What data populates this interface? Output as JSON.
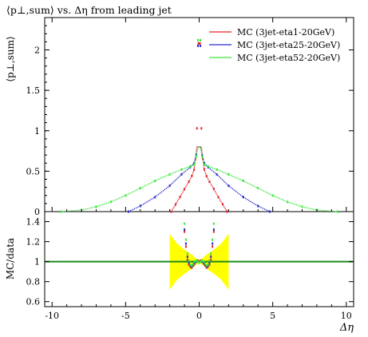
{
  "chart_data": {
    "type": "line",
    "title": "⟨p⊥,sum⟩ vs. Δη from leading jet",
    "xlabel": "Δη",
    "top_panel": {
      "ylabel": "⟨p⊥,sum⟩",
      "xlim": [
        -10.5,
        10.5
      ],
      "ylim": [
        0,
        2.4
      ],
      "yticks": [
        "0",
        "0.5",
        "1",
        "1.5",
        "2"
      ],
      "xticks": [
        "-10",
        "-5",
        "0",
        "5",
        "10"
      ],
      "legend_position": "top-right",
      "series": [
        {
          "name": "MC (3jet-eta1-20GeV)",
          "color": "#e8202a",
          "x": [
            -1.9,
            -1.6,
            -1.3,
            -1.0,
            -0.7,
            -0.5,
            -0.35,
            -0.25,
            -0.15,
            -0.05,
            0.05,
            0.15,
            0.25,
            0.35,
            0.5,
            0.7,
            1.0,
            1.3,
            1.6,
            1.9
          ],
          "y": [
            0.0,
            0.09,
            0.18,
            0.28,
            0.37,
            0.44,
            0.52,
            0.65,
            1.03,
            2.08,
            2.08,
            1.03,
            0.65,
            0.52,
            0.44,
            0.37,
            0.28,
            0.18,
            0.09,
            0.0
          ]
        },
        {
          "name": "MC (3jet-eta25-20GeV)",
          "color": "#2a2ad0",
          "x": [
            -4.8,
            -4.0,
            -3.0,
            -2.0,
            -1.2,
            -0.6,
            -0.35,
            -0.2,
            -0.08,
            0.08,
            0.2,
            0.35,
            0.6,
            1.2,
            2.0,
            3.0,
            4.0,
            4.8
          ],
          "y": [
            0.0,
            0.07,
            0.18,
            0.32,
            0.46,
            0.55,
            0.6,
            0.7,
            2.05,
            2.05,
            0.7,
            0.6,
            0.55,
            0.46,
            0.32,
            0.18,
            0.07,
            0.0
          ],
          "note_points": []
        },
        {
          "name": "MC (3jet-eta52-20GeV)",
          "color": "#3ae83a",
          "x": [
            -9.4,
            -8.0,
            -7.0,
            -6.0,
            -5.0,
            -4.0,
            -3.0,
            -2.0,
            -1.2,
            -0.6,
            -0.35,
            -0.2,
            -0.08,
            0.08,
            0.2,
            0.35,
            0.6,
            1.2,
            2.0,
            3.0,
            4.0,
            5.0,
            6.0,
            7.0,
            8.0,
            9.4
          ],
          "y": [
            0.0,
            0.02,
            0.06,
            0.12,
            0.2,
            0.29,
            0.38,
            0.46,
            0.52,
            0.56,
            0.58,
            0.68,
            2.12,
            2.12,
            0.68,
            0.58,
            0.56,
            0.52,
            0.46,
            0.38,
            0.29,
            0.2,
            0.12,
            0.06,
            0.02,
            0.0
          ]
        }
      ]
    },
    "ratio_panel": {
      "ylabel": "MC/data",
      "ylim": [
        0.55,
        1.5
      ],
      "yticks": [
        "0.6",
        "0.8",
        "1",
        "1.2",
        "1.4"
      ],
      "reference_line": 1.0,
      "band_color": "#ffff00",
      "band": {
        "x": [
          -2.0,
          -1.5,
          -1.0,
          -0.5,
          -0.2,
          0.0,
          0.2,
          0.5,
          1.0,
          1.5,
          2.0
        ],
        "lo": [
          0.72,
          0.82,
          0.88,
          0.93,
          0.97,
          0.98,
          0.97,
          0.93,
          0.88,
          0.82,
          0.72
        ],
        "hi": [
          1.28,
          1.18,
          1.12,
          1.07,
          1.03,
          1.02,
          1.03,
          1.07,
          1.12,
          1.18,
          1.28
        ]
      },
      "series": [
        {
          "name": "MC (3jet-eta1-20GeV)",
          "color": "#e8202a",
          "x": [
            -1.0,
            -0.9,
            -0.8,
            -0.7,
            -0.6,
            -0.5,
            -0.4,
            -0.3,
            -0.2,
            -0.1,
            0.0,
            0.1,
            0.2,
            0.3,
            0.4,
            0.5,
            0.6,
            0.7,
            0.8,
            0.9,
            1.0
          ],
          "y": [
            1.3,
            1.15,
            1.02,
            0.97,
            0.95,
            0.94,
            0.96,
            0.98,
            1.0,
            1.01,
            1.0,
            1.01,
            1.0,
            0.98,
            0.96,
            0.94,
            0.95,
            0.97,
            1.02,
            1.15,
            1.3
          ]
        },
        {
          "name": "MC (3jet-eta25-20GeV)",
          "color": "#2a2ad0",
          "x": [
            -1.0,
            -0.9,
            -0.8,
            -0.7,
            -0.6,
            -0.5,
            -0.4,
            -0.3,
            -0.2,
            -0.1,
            0.0,
            0.1,
            0.2,
            0.3,
            0.4,
            0.5,
            0.6,
            0.7,
            0.8,
            0.9,
            1.0
          ],
          "y": [
            1.32,
            1.18,
            1.05,
            0.99,
            0.96,
            0.95,
            0.97,
            0.99,
            1.0,
            1.0,
            0.99,
            1.0,
            1.0,
            0.99,
            0.97,
            0.95,
            0.96,
            0.99,
            1.05,
            1.18,
            1.32
          ]
        },
        {
          "name": "MC (3jet-eta52-20GeV)",
          "color": "#3ae83a",
          "x": [
            -1.0,
            -0.9,
            -0.8,
            -0.7,
            -0.6,
            -0.5,
            -0.4,
            -0.3,
            -0.2,
            -0.1,
            0.0,
            0.1,
            0.2,
            0.3,
            0.4,
            0.5,
            0.6,
            0.7,
            0.8,
            0.9,
            1.0
          ],
          "y": [
            1.38,
            1.22,
            1.08,
            1.01,
            0.97,
            0.96,
            0.98,
            1.0,
            1.01,
            1.0,
            0.99,
            1.0,
            1.01,
            1.0,
            0.98,
            0.96,
            0.97,
            1.01,
            1.08,
            1.22,
            1.38
          ]
        }
      ]
    }
  }
}
